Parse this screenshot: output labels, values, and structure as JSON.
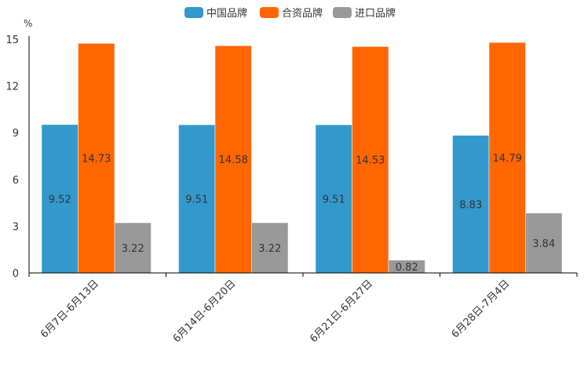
{
  "chart_data": {
    "type": "bar",
    "title": "",
    "unit": "%",
    "categories": [
      "6月7日-6月13日",
      "6月14日-6月20日",
      "6月21日-6月27日",
      "6月28日-7月4日"
    ],
    "series": [
      {
        "name": "中国品牌",
        "color": "#3399cc",
        "values": [
          9.52,
          9.51,
          9.51,
          8.83
        ]
      },
      {
        "name": "合资品牌",
        "color": "#ff6600",
        "values": [
          14.73,
          14.58,
          14.53,
          14.79
        ]
      },
      {
        "name": "进口品牌",
        "color": "#999999",
        "values": [
          3.22,
          3.22,
          0.82,
          3.84
        ]
      }
    ],
    "ylim": [
      0,
      15
    ],
    "yticks": [
      "0",
      "3",
      "6",
      "9",
      "12",
      "15"
    ],
    "legend_position": "top-center",
    "grid": false
  }
}
